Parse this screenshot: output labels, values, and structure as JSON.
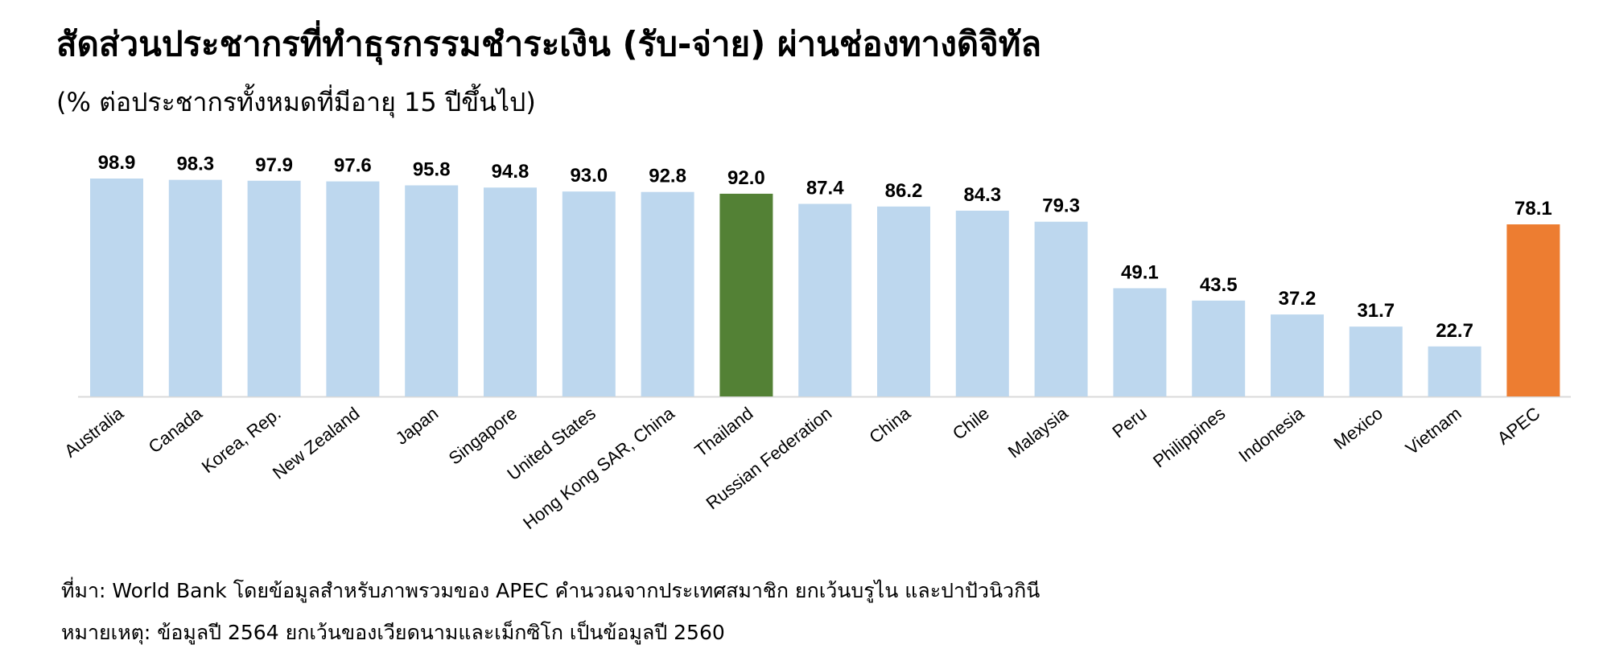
{
  "title": "สัดส่วนประชากรที่ทำธุรกรรมชำระเงิน (รับ-จ่าย) ผ่านช่องทางดิจิทัล",
  "subtitle": "(% ต่อประชากรทั้งหมดที่มีอายุ 15 ปีขึ้นไป)",
  "footnotes": {
    "source": "ที่มา: World Bank โดยข้อมูลสำหรับภาพรวมของ APEC คำนวณจากประเทศสมาชิก ยกเว้นบรูไน และปาปัวนิวกินี",
    "note": "หมายเหตุ: ข้อมูลปี 2564 ยกเว้นของเวียดนามและเม็กซิโก เป็นข้อมูลปี 2560"
  },
  "colors": {
    "default_bar": "#BDD7EE",
    "thailand_bar": "#538135",
    "apec_bar": "#ED7D31",
    "axis": "#D9D9D9"
  },
  "chart_data": {
    "type": "bar",
    "title": "สัดส่วนประชากรที่ทำธุรกรรมชำระเงิน (รับ-จ่าย) ผ่านช่องทางดิจิทัล",
    "subtitle": "(% ต่อประชากรทั้งหมดที่มีอายุ 15 ปีขึ้นไป)",
    "xlabel": "",
    "ylabel": "",
    "ylim": [
      0,
      100
    ],
    "grid": false,
    "data_labels": true,
    "categories": [
      "Australia",
      "Canada",
      "Korea, Rep.",
      "New Zealand",
      "Japan",
      "Singapore",
      "United States",
      "Hong Kong SAR, China",
      "Thailand",
      "Russian Federation",
      "China",
      "Chile",
      "Malaysia",
      "Peru",
      "Philippines",
      "Indonesia",
      "Mexico",
      "Vietnam",
      "APEC"
    ],
    "values": [
      98.9,
      98.3,
      97.9,
      97.6,
      95.8,
      94.8,
      93.0,
      92.8,
      92.0,
      87.4,
      86.2,
      84.3,
      79.3,
      49.1,
      43.5,
      37.2,
      31.7,
      22.7,
      78.1
    ],
    "highlight": {
      "Thailand": "#538135",
      "APEC": "#ED7D31"
    }
  }
}
